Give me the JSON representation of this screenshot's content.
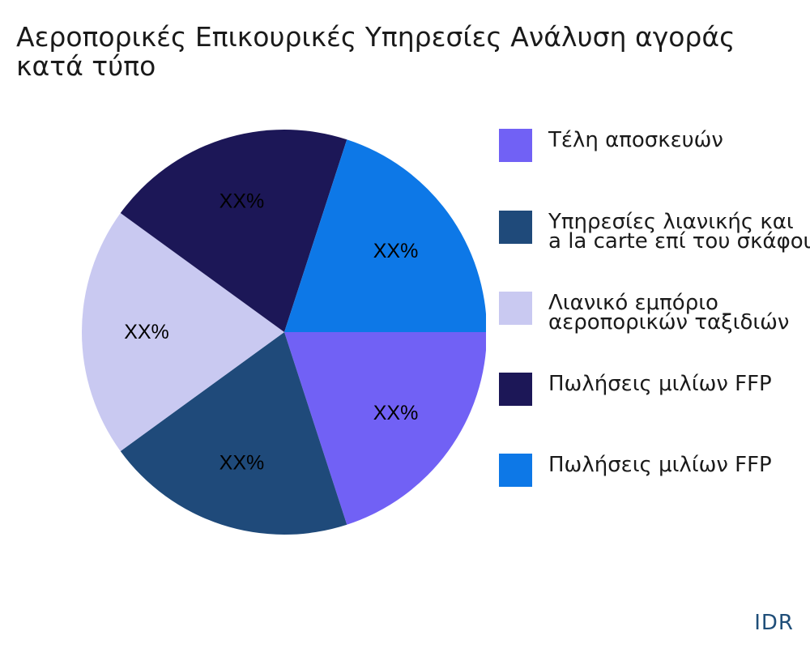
{
  "title": {
    "line1": "Αεροπορικές Επικουρικές Υπηρεσίες Ανάλυση αγοράς",
    "line2": "κατά τύπο"
  },
  "brand": "IDR",
  "chart_data": {
    "type": "pie",
    "title": "Αεροπορικές Επικουρικές Υπηρεσίες Ανάλυση αγοράς κατά τύπο",
    "legend_position": "right",
    "slices": [
      {
        "name": "Τέλη αποσκευών",
        "value": 20,
        "label": "XX%",
        "color": "#7161f5"
      },
      {
        "name": "Υπηρεσίες λιανικής και a la carte επί του σκάφους",
        "value": 20,
        "label": "XX%",
        "color": "#1f4a7a"
      },
      {
        "name": "Λιανικό εμπόριο αεροπορικών ταξιδιών",
        "value": 20,
        "label": "XX%",
        "color": "#c9c9f1"
      },
      {
        "name": "Πωλήσεις μιλίων FFP",
        "value": 20,
        "label": "XX%",
        "color": "#1c1757"
      },
      {
        "name": "Πωλήσεις μιλίων FFP",
        "value": 20,
        "label": "XX%",
        "color": "#0d78e7"
      }
    ]
  },
  "legend": [
    {
      "line1": "Τέλη αποσκευών",
      "line2": "",
      "color": "#7161f5"
    },
    {
      "line1": "Υπηρεσίες λιανικής και",
      "line2": "a la carte επί του σκάφους",
      "color": "#1f4a7a"
    },
    {
      "line1": "Λιανικό εμπόριο",
      "line2": "αεροπορικών ταξιδιών",
      "color": "#c9c9f1"
    },
    {
      "line1": "Πωλήσεις μιλίων FFP",
      "line2": "",
      "color": "#1c1757"
    },
    {
      "line1": "Πωλήσεις μιλίων FFP",
      "line2": "",
      "color": "#0d78e7"
    }
  ]
}
